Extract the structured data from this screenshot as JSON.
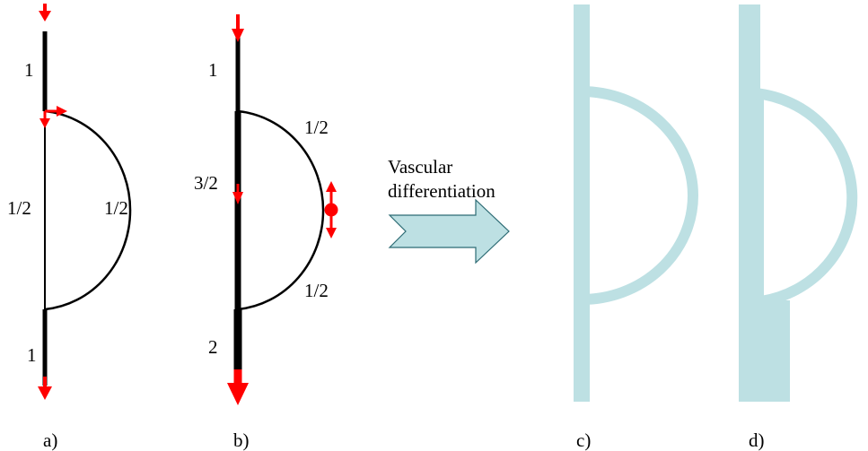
{
  "colors": {
    "arrow": "#ff0000",
    "stem": "#000000",
    "vessel": "#bde0e3",
    "big_arrow_fill": "#bde0e3",
    "big_arrow_stroke": "#2d6b74"
  },
  "panel_a": {
    "top_flow": "1",
    "middle_flow": "1/2",
    "arc_flow": "1/2",
    "bottom_flow": "1",
    "caption": "a)"
  },
  "panel_b": {
    "top_flow": "1",
    "arc_upper_flow": "1/2",
    "middle_flow": "3/2",
    "arc_lower_flow": "1/2",
    "bottom_flow": "2",
    "caption": "b)"
  },
  "transition": {
    "label_line1": "Vascular",
    "label_line2": "differentiation",
    "icon": "right-arrow-icon"
  },
  "panel_c": {
    "caption": "c)"
  },
  "panel_d": {
    "caption": "d)"
  }
}
